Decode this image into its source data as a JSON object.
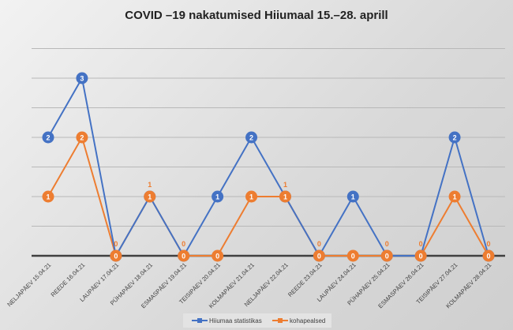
{
  "chart_data": {
    "type": "line",
    "title": "COVID –19 nakatumised Hiiumaal 15.–28. aprill",
    "categories": [
      "NELJAPÄEV 15.04.21",
      "REEDE 16.04.21",
      "LAUPÄEV 17.04.21",
      "PÜHAPÄEV 18.04.21",
      "ESMASPÄEV 19.04.21",
      "TEISIPÄEV 20.04.21",
      "KOLMAPÄEV 21.04.21",
      "NELJAPÄEV 22.04.21",
      "REEDE 23.04.21",
      "LAUPÄEV 24.04.21",
      "PÜHAPÄEV 25.04.21",
      "ESMASPÄEV 26.04.21",
      "TEISIPÄEV 27.04.21",
      "KOLMAPÄEV 28.04.21"
    ],
    "series": [
      {
        "name": "Hiiumaa statistikas",
        "color": "#4472c4",
        "values": [
          2,
          3,
          0,
          1,
          0,
          1,
          2,
          1,
          0,
          1,
          0,
          0,
          2,
          0
        ]
      },
      {
        "name": "kohapealsed",
        "color": "#ed7d31",
        "values": [
          1,
          2,
          0,
          1,
          0,
          0,
          1,
          1,
          0,
          0,
          0,
          0,
          1,
          0
        ]
      }
    ],
    "ylim": [
      0,
      3.5
    ],
    "grid": true,
    "legend": "bottom"
  }
}
